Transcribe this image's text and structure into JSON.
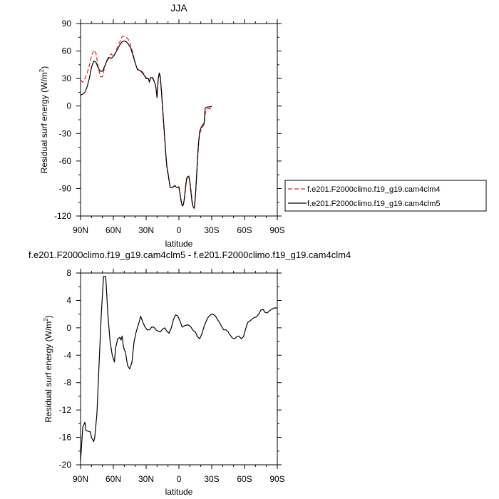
{
  "chart_data": [
    {
      "type": "line",
      "title": "JJA",
      "xlabel": "latitude",
      "ylabel": "Residual surf energy (W/m",
      "ylabel_sup": "2",
      "ylabel_close": ")",
      "xlim": [
        90,
        -90
      ],
      "ylim": [
        -120,
        90
      ],
      "xticks": [
        90,
        60,
        30,
        0,
        -30,
        -60,
        -90
      ],
      "xtick_labels": [
        "90N",
        "60N",
        "30N",
        "0",
        "30S",
        "60S",
        "90S"
      ],
      "yticks": [
        90,
        60,
        30,
        0,
        -30,
        -60,
        -90,
        -120
      ],
      "ytick_labels": [
        "90",
        "60",
        "30",
        "0",
        "-30",
        "-60",
        "-90",
        "-120"
      ],
      "legend_position": "right",
      "series": [
        {
          "name": "f.e201.F2000climo.f19_g19.cam4clm4",
          "color": "#e8201f",
          "dash": "dashed",
          "points": [
            [
              90,
              28
            ],
            [
              88,
              26
            ],
            [
              86,
              30
            ],
            [
              84,
              36
            ],
            [
              82,
              44
            ],
            [
              80,
              54
            ],
            [
              78,
              61
            ],
            [
              76,
              58
            ],
            [
              74,
              44
            ],
            [
              72,
              32
            ],
            [
              70,
              32
            ],
            [
              68,
              42
            ],
            [
              66,
              50
            ],
            [
              64,
              54
            ],
            [
              62,
              57
            ],
            [
              60,
              54
            ],
            [
              58,
              58
            ],
            [
              56,
              66
            ],
            [
              54,
              70
            ],
            [
              52,
              76
            ],
            [
              50,
              76
            ],
            [
              48,
              75
            ],
            [
              46,
              72
            ],
            [
              44,
              66
            ],
            [
              42,
              57
            ],
            [
              40,
              47
            ],
            [
              38,
              40
            ],
            [
              36,
              39
            ],
            [
              34,
              38
            ],
            [
              32,
              35
            ],
            [
              30,
              31
            ],
            [
              28,
              30
            ],
            [
              27,
              27
            ],
            [
              26,
              31
            ],
            [
              24,
              30
            ],
            [
              22,
              25
            ],
            [
              21,
              19
            ],
            [
              20,
              10
            ],
            [
              19,
              30
            ],
            [
              18,
              36
            ],
            [
              17,
              30
            ],
            [
              16,
              14
            ],
            [
              15,
              -3
            ],
            [
              14,
              -20
            ],
            [
              13,
              -38
            ],
            [
              12,
              -54
            ],
            [
              11,
              -68
            ],
            [
              10,
              -75
            ],
            [
              9,
              -82
            ],
            [
              8,
              -88
            ],
            [
              6,
              -89
            ],
            [
              4,
              -87
            ],
            [
              2,
              -87
            ],
            [
              0,
              -88
            ],
            [
              -1,
              -95
            ],
            [
              -2,
              -103
            ],
            [
              -3,
              -108
            ],
            [
              -4,
              -108
            ],
            [
              -5,
              -100
            ],
            [
              -6,
              -88
            ],
            [
              -7,
              -79
            ],
            [
              -8,
              -76
            ],
            [
              -9,
              -76
            ],
            [
              -10,
              -82
            ],
            [
              -11,
              -92
            ],
            [
              -12,
              -103
            ],
            [
              -13,
              -110
            ],
            [
              -14,
              -112
            ],
            [
              -15,
              -100
            ],
            [
              -16,
              -82
            ],
            [
              -17,
              -60
            ],
            [
              -18,
              -42
            ],
            [
              -19,
              -30
            ],
            [
              -20,
              -27
            ],
            [
              -21,
              -25
            ],
            [
              -22,
              -22
            ],
            [
              -23,
              -20
            ],
            [
              -24,
              -8
            ],
            [
              -26,
              -3
            ],
            [
              -28,
              -3
            ],
            [
              -30,
              -3
            ]
          ]
        },
        {
          "name": "f.e201.F2000climo.f19_g19.cam4clm5",
          "color": "#000000",
          "dash": "solid",
          "points": [
            [
              90,
              12
            ],
            [
              88,
              13
            ],
            [
              86,
              15
            ],
            [
              84,
              21
            ],
            [
              82,
              30
            ],
            [
              80,
              42
            ],
            [
              78,
              49
            ],
            [
              76,
              48
            ],
            [
              74,
              42
            ],
            [
              72,
              38
            ],
            [
              70,
              38
            ],
            [
              68,
              43
            ],
            [
              66,
              49
            ],
            [
              64,
              53
            ],
            [
              62,
              52
            ],
            [
              60,
              54
            ],
            [
              58,
              58
            ],
            [
              56,
              62
            ],
            [
              54,
              67
            ],
            [
              52,
              70
            ],
            [
              50,
              71
            ],
            [
              48,
              70
            ],
            [
              46,
              67
            ],
            [
              44,
              63
            ],
            [
              42,
              55
            ],
            [
              40,
              47
            ],
            [
              38,
              40
            ],
            [
              36,
              39
            ],
            [
              34,
              37
            ],
            [
              32,
              34
            ],
            [
              30,
              30
            ],
            [
              28,
              30
            ],
            [
              27,
              26
            ],
            [
              26,
              31
            ],
            [
              24,
              31
            ],
            [
              22,
              25
            ],
            [
              21,
              20
            ],
            [
              20,
              9
            ],
            [
              19,
              29
            ],
            [
              18,
              36
            ],
            [
              17,
              32
            ],
            [
              16,
              16
            ],
            [
              15,
              0
            ],
            [
              14,
              -17
            ],
            [
              13,
              -35
            ],
            [
              12,
              -52
            ],
            [
              11,
              -66
            ],
            [
              10,
              -73
            ],
            [
              9,
              -81
            ],
            [
              8,
              -89
            ],
            [
              6,
              -89
            ],
            [
              4,
              -87
            ],
            [
              2,
              -89
            ],
            [
              0,
              -89
            ],
            [
              -1,
              -96
            ],
            [
              -2,
              -104
            ],
            [
              -3,
              -109
            ],
            [
              -4,
              -108
            ],
            [
              -5,
              -101
            ],
            [
              -6,
              -90
            ],
            [
              -7,
              -80
            ],
            [
              -8,
              -77
            ],
            [
              -9,
              -77
            ],
            [
              -10,
              -83
            ],
            [
              -11,
              -94
            ],
            [
              -12,
              -105
            ],
            [
              -13,
              -110
            ],
            [
              -14,
              -111
            ],
            [
              -15,
              -100
            ],
            [
              -16,
              -80
            ],
            [
              -17,
              -57
            ],
            [
              -18,
              -39
            ],
            [
              -19,
              -28
            ],
            [
              -20,
              -24
            ],
            [
              -21,
              -22
            ],
            [
              -22,
              -20
            ],
            [
              -23,
              -19
            ],
            [
              -24,
              -2
            ],
            [
              -26,
              -1
            ],
            [
              -28,
              -1
            ],
            [
              -30,
              -0.5
            ]
          ]
        }
      ]
    },
    {
      "type": "line",
      "title": "f.e201.F2000climo.f19_g19.cam4clm5 - f.e201.F2000climo.f19_g19.cam4clm4",
      "xlabel": "latitude",
      "ylabel": "Residual surf energy (W/m",
      "ylabel_sup": "2",
      "ylabel_close": ")",
      "xlim": [
        90,
        -90
      ],
      "ylim": [
        -20,
        8
      ],
      "xticks": [
        90,
        60,
        30,
        0,
        -30,
        -60,
        -90
      ],
      "xtick_labels": [
        "90N",
        "60N",
        "30N",
        "0",
        "30S",
        "60S",
        "90S"
      ],
      "yticks": [
        8,
        4,
        0,
        -4,
        -8,
        -12,
        -16,
        -20
      ],
      "ytick_labels": [
        "8",
        "4",
        "0",
        "-4",
        "-8",
        "-12",
        "-16",
        "-20"
      ],
      "series": [
        {
          "color": "#000000",
          "dash": "solid",
          "points": [
            [
              90,
              -19.5
            ],
            [
              88,
              -14.5
            ],
            [
              86,
              -13.8
            ],
            [
              85,
              -15
            ],
            [
              83,
              -15.1
            ],
            [
              81,
              -15.2
            ],
            [
              80,
              -16
            ],
            [
              78,
              -16.6
            ],
            [
              77,
              -16
            ],
            [
              75,
              -12.5
            ],
            [
              73,
              -5
            ],
            [
              71,
              2
            ],
            [
              69,
              7.5
            ],
            [
              67,
              7.5
            ],
            [
              65,
              2
            ],
            [
              63,
              -2
            ],
            [
              61,
              -4
            ],
            [
              59,
              -5
            ],
            [
              58,
              -3
            ],
            [
              56,
              -1.6
            ],
            [
              54,
              -1.4
            ],
            [
              53,
              -1.8
            ],
            [
              52,
              -1.2
            ],
            [
              51,
              -2.5
            ],
            [
              50,
              -3.2
            ],
            [
              49,
              -3.5
            ],
            [
              47,
              -5.5
            ],
            [
              45,
              -6
            ],
            [
              43,
              -5
            ],
            [
              41,
              -2
            ],
            [
              39,
              -0.5
            ],
            [
              37,
              0.5
            ],
            [
              35,
              1.7
            ],
            [
              33,
              0.8
            ],
            [
              31,
              0.1
            ],
            [
              29,
              -0.3
            ],
            [
              27,
              -0.3
            ],
            [
              25,
              0.1
            ],
            [
              23,
              0.1
            ],
            [
              21,
              -0.3
            ],
            [
              19,
              -0.5
            ],
            [
              17,
              -0.6
            ],
            [
              15,
              -0.2
            ],
            [
              13,
              0
            ],
            [
              11,
              -0.5
            ],
            [
              9,
              -0.8
            ],
            [
              7,
              0
            ],
            [
              5,
              1.2
            ],
            [
              3,
              1.9
            ],
            [
              1,
              1.7
            ],
            [
              -1,
              1
            ],
            [
              -3,
              0.1
            ],
            [
              -5,
              0.3
            ],
            [
              -7,
              0.4
            ],
            [
              -9,
              0.4
            ],
            [
              -11,
              0.1
            ],
            [
              -13,
              -0.4
            ],
            [
              -15,
              -0.6
            ],
            [
              -17,
              -1.3
            ],
            [
              -19,
              -1.6
            ],
            [
              -21,
              -0.9
            ],
            [
              -23,
              0.2
            ],
            [
              -25,
              1
            ],
            [
              -27,
              1.6
            ],
            [
              -29,
              1.9
            ],
            [
              -31,
              2
            ],
            [
              -33,
              1.8
            ],
            [
              -35,
              1.3
            ],
            [
              -37,
              0.8
            ],
            [
              -39,
              0.2
            ],
            [
              -41,
              -0.3
            ],
            [
              -43,
              -0.3
            ],
            [
              -45,
              -0.6
            ],
            [
              -47,
              -1.1
            ],
            [
              -49,
              -1.5
            ],
            [
              -51,
              -1.6
            ],
            [
              -53,
              -1.3
            ],
            [
              -55,
              -1.2
            ],
            [
              -57,
              -1.6
            ],
            [
              -59,
              -1.3
            ],
            [
              -61,
              -0.2
            ],
            [
              -63,
              0.8
            ],
            [
              -65,
              1
            ],
            [
              -67,
              1.3
            ],
            [
              -69,
              1.5
            ],
            [
              -71,
              1.6
            ],
            [
              -73,
              2
            ],
            [
              -75,
              2.6
            ],
            [
              -77,
              2.7
            ],
            [
              -79,
              2.2
            ],
            [
              -81,
              2.2
            ],
            [
              -83,
              2.5
            ],
            [
              -85,
              2.7
            ],
            [
              -87,
              2.9
            ],
            [
              -90,
              2.9
            ]
          ]
        }
      ]
    }
  ]
}
